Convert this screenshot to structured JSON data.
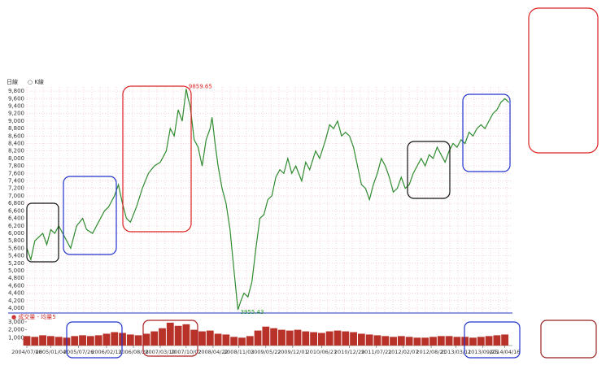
{
  "chart_data": [
    {
      "type": "line",
      "title": "日線",
      "legend": "○ K線",
      "color": "#2e8b2e",
      "grid": true,
      "xlim": [
        0,
        2430
      ],
      "ylim": [
        3870,
        9910
      ],
      "yticks": [
        {
          "value": 4000,
          "label": "4,000"
        },
        {
          "value": 4200,
          "label": "4,200"
        },
        {
          "value": 4400,
          "label": "4,400"
        },
        {
          "value": 4600,
          "label": "4,600"
        },
        {
          "value": 4800,
          "label": "4,800"
        },
        {
          "value": 5000,
          "label": "5,000"
        },
        {
          "value": 5200,
          "label": "5,200"
        },
        {
          "value": 5400,
          "label": "5,400"
        },
        {
          "value": 5600,
          "label": "5,600"
        },
        {
          "value": 5800,
          "label": "5,800"
        },
        {
          "value": 6000,
          "label": "6,000"
        },
        {
          "value": 6200,
          "label": "6,200"
        },
        {
          "value": 6400,
          "label": "6,400"
        },
        {
          "value": 6600,
          "label": "6,600"
        },
        {
          "value": 6800,
          "label": "6,800"
        },
        {
          "value": 7000,
          "label": "7,000"
        },
        {
          "value": 7200,
          "label": "7,200"
        },
        {
          "value": 7400,
          "label": "7,400"
        },
        {
          "value": 7600,
          "label": "7,600"
        },
        {
          "value": 7800,
          "label": "7,800"
        },
        {
          "value": 8000,
          "label": "8,000"
        },
        {
          "value": 8200,
          "label": "8,200"
        },
        {
          "value": 8400,
          "label": "8,400"
        },
        {
          "value": 8600,
          "label": "8,600"
        },
        {
          "value": 8800,
          "label": "8,800"
        },
        {
          "value": 9000,
          "label": "9,000"
        },
        {
          "value": 9200,
          "label": "9,200"
        },
        {
          "value": 9400,
          "label": "9,400"
        },
        {
          "value": 9600,
          "label": "9,600"
        },
        {
          "value": 9800,
          "label": "9,800"
        }
      ],
      "x": [
        0,
        20,
        40,
        60,
        80,
        100,
        120,
        140,
        160,
        180,
        200,
        220,
        250,
        280,
        300,
        330,
        360,
        390,
        410,
        440,
        460,
        480,
        500,
        520,
        550,
        580,
        610,
        640,
        670,
        700,
        720,
        740,
        760,
        780,
        800,
        810,
        820,
        840,
        860,
        880,
        900,
        920,
        930,
        945,
        960,
        980,
        1000,
        1020,
        1040,
        1060,
        1075,
        1090,
        1110,
        1130,
        1150,
        1170,
        1190,
        1210,
        1230,
        1250,
        1270,
        1290,
        1310,
        1330,
        1350,
        1380,
        1400,
        1420,
        1450,
        1470,
        1500,
        1520,
        1540,
        1560,
        1580,
        1600,
        1620,
        1640,
        1660,
        1680,
        1700,
        1720,
        1740,
        1760,
        1780,
        1800,
        1820,
        1840,
        1860,
        1880,
        1900,
        1920,
        1940,
        1960,
        1980,
        2000,
        2020,
        2040,
        2060,
        2080,
        2100,
        2120,
        2140,
        2160,
        2180,
        2200,
        2220,
        2240,
        2260,
        2280,
        2300,
        2320,
        2340,
        2360,
        2380,
        2400,
        2420
      ],
      "values": [
        5600,
        5300,
        5800,
        5900,
        6000,
        5700,
        6100,
        6000,
        6200,
        6000,
        5800,
        5600,
        6200,
        6400,
        6100,
        6000,
        6300,
        6600,
        6700,
        7000,
        7300,
        6800,
        6400,
        6300,
        6700,
        7200,
        7600,
        7800,
        7900,
        8200,
        8800,
        8600,
        9300,
        9000,
        9859.65,
        9600,
        9400,
        8500,
        8300,
        7800,
        8500,
        8800,
        9100,
        8400,
        7800,
        7200,
        6800,
        6100,
        5000,
        3955.43,
        4200,
        4400,
        4300,
        4700,
        5600,
        6400,
        6500,
        6900,
        7000,
        7500,
        7700,
        7600,
        8000,
        7600,
        7800,
        7400,
        7900,
        7700,
        8200,
        8000,
        8500,
        8900,
        8800,
        9000,
        8600,
        8700,
        8600,
        8300,
        7800,
        7300,
        7200,
        6900,
        7300,
        7600,
        8000,
        7800,
        7500,
        7100,
        7200,
        7500,
        7200,
        7300,
        7600,
        7800,
        8000,
        7800,
        8100,
        8000,
        8300,
        8100,
        7900,
        8200,
        8400,
        8300,
        8500,
        8400,
        8700,
        8600,
        8800,
        8900,
        8800,
        9000,
        9200,
        9300,
        9500,
        9600,
        9500
      ],
      "annotations": [
        {
          "x": 800,
          "value": 9859.65
        },
        {
          "x": 1060,
          "value": 3955.43
        }
      ]
    },
    {
      "type": "bar",
      "legend": "● 成交量 - 均量5",
      "color": "#b8322a",
      "xlim": [
        0,
        2430
      ],
      "ylim": [
        0,
        3300
      ],
      "yticks": [
        {
          "value": 1000,
          "label": "1,000"
        },
        {
          "value": 2000,
          "label": "2,000"
        },
        {
          "value": 3000,
          "label": "3,000"
        }
      ],
      "xticks": [
        {
          "value": 0,
          "label": "2004/07/08"
        },
        {
          "value": 120,
          "label": "2005/01/04"
        },
        {
          "value": 260,
          "label": "2005/07/26"
        },
        {
          "value": 400,
          "label": "2006/02/13"
        },
        {
          "value": 535,
          "label": "2006/08/28"
        },
        {
          "value": 670,
          "label": "2007/03/19"
        },
        {
          "value": 800,
          "label": "2007/10/02"
        },
        {
          "value": 935,
          "label": "2008/04/22"
        },
        {
          "value": 1065,
          "label": "2008/11/03"
        },
        {
          "value": 1200,
          "label": "2009/05/22"
        },
        {
          "value": 1335,
          "label": "2009/12/01"
        },
        {
          "value": 1480,
          "label": "2010/06/21"
        },
        {
          "value": 1620,
          "label": "2010/12/29"
        },
        {
          "value": 1755,
          "label": "2011/07/21"
        },
        {
          "value": 1890,
          "label": "2012/02/07"
        },
        {
          "value": 2030,
          "label": "2012/08/21"
        },
        {
          "value": 2155,
          "label": "2013/03/11"
        },
        {
          "value": 2290,
          "label": "2013/09/25"
        },
        {
          "value": 2400,
          "label": "2014/04/16"
        }
      ],
      "x": [
        0,
        40,
        80,
        120,
        160,
        200,
        240,
        280,
        320,
        360,
        400,
        440,
        480,
        520,
        560,
        600,
        640,
        680,
        720,
        760,
        800,
        840,
        880,
        920,
        960,
        1000,
        1040,
        1080,
        1120,
        1160,
        1200,
        1240,
        1280,
        1320,
        1360,
        1400,
        1440,
        1480,
        1520,
        1560,
        1600,
        1640,
        1680,
        1720,
        1760,
        1800,
        1840,
        1880,
        1920,
        1960,
        2000,
        2040,
        2080,
        2120,
        2160,
        2200,
        2240,
        2280,
        2320,
        2360,
        2400
      ],
      "values": [
        1200,
        1100,
        1300,
        1200,
        1100,
        1000,
        1200,
        1300,
        1200,
        1300,
        1500,
        1700,
        1600,
        1400,
        1300,
        1500,
        1800,
        2200,
        2900,
        2500,
        2700,
        2000,
        1800,
        1900,
        1500,
        1400,
        1100,
        1000,
        1200,
        1900,
        2400,
        2200,
        2000,
        1900,
        2000,
        1800,
        1700,
        1600,
        1800,
        1900,
        1800,
        1700,
        1500,
        1400,
        1300,
        1200,
        1100,
        1200,
        1100,
        1000,
        1000,
        1100,
        1200,
        1200,
        1100,
        1100,
        1000,
        1100,
        1200,
        1300,
        1400
      ]
    }
  ]
}
